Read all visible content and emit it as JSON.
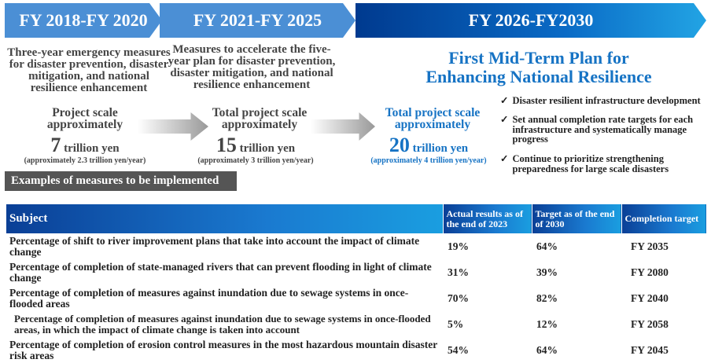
{
  "phases": [
    {
      "period": "FY 2018-FY 2020",
      "description": "Three-year emergency measures for disaster prevention, disaster mitigation, and national resilience enhancement",
      "scale_label": "Project scale approximately",
      "amount": "7",
      "unit": "trillion yen",
      "per_year": "(approximately 2.3 trillion yen/year)"
    },
    {
      "period": "FY 2021-FY 2025",
      "description": "Measures to accelerate the five-year plan for disaster prevention, disaster mitigation, and national resilience enhancement",
      "scale_label": "Total project scale approximately",
      "amount": "15",
      "unit": "trillion yen",
      "per_year": "(approximately 3 trillion yen/year)"
    },
    {
      "period": "FY 2026-FY2030",
      "title": "First Mid-Term Plan for Enhancing National Resilience",
      "scale_label": "Total project scale approximately",
      "amount": "20",
      "unit": "trillion yen",
      "per_year": "(approximately 4 trillion yen/year)",
      "checks": [
        "Disaster resilient infrastructure development",
        "Set annual completion rate targets for each infrastructure and systematically manage progress",
        "Continue to prioritize strengthening preparedness for large scale disasters"
      ]
    }
  ],
  "examples_label": "Examples of measures to be implemented",
  "table": {
    "headers": [
      "Subject",
      "Actual results as of the end of 2023",
      "Target as of the end of 2030",
      "Completion target"
    ],
    "rows": [
      [
        "Percentage of shift to river improvement plans that take into account the impact of climate change",
        "19%",
        "64%",
        "FY 2035"
      ],
      [
        "Percentage of completion of state-managed rivers that can prevent flooding in light of climate change",
        "31%",
        "39%",
        "FY 2080"
      ],
      [
        "Percentage of completion of measures against inundation due to sewage systems in once-flooded areas",
        "70%",
        "82%",
        "FY 2040"
      ],
      [
        "Percentage of completion of measures against inundation due to sewage systems in once-flooded areas, in which the impact of climate change is taken into account",
        "5%",
        "12%",
        "FY 2058"
      ],
      [
        "Percentage of completion of erosion control measures in the most hazardous mountain disaster risk areas",
        "54%",
        "64%",
        "FY 2045"
      ]
    ]
  }
}
